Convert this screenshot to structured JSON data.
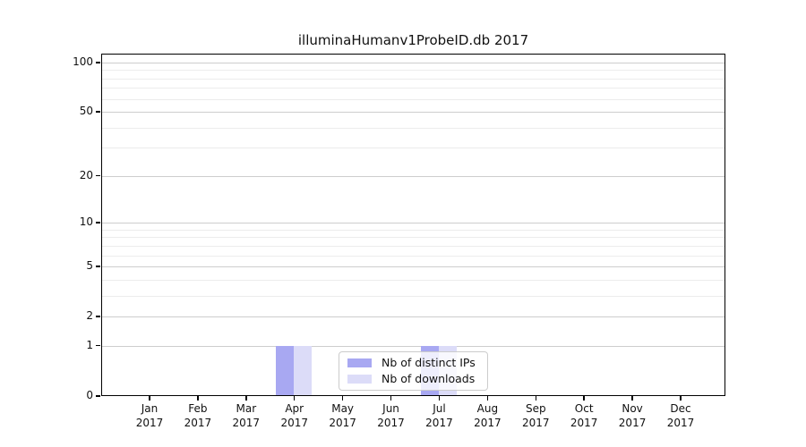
{
  "title": "illuminaHumanv1ProbeID.db 2017",
  "chart_data": {
    "type": "bar",
    "title": "illuminaHumanv1ProbeID.db 2017",
    "categories": [
      "Jan",
      "Feb",
      "Mar",
      "Apr",
      "May",
      "Jun",
      "Jul",
      "Aug",
      "Sep",
      "Oct",
      "Nov",
      "Dec"
    ],
    "category_year": "2017",
    "series": [
      {
        "name": "Nb of distinct IPs",
        "color": "#a8a8f2",
        "values": [
          0,
          0,
          0,
          1,
          0,
          0,
          1,
          0,
          0,
          0,
          0,
          0
        ]
      },
      {
        "name": "Nb of downloads",
        "color": "#dcdcf8",
        "values": [
          0,
          0,
          0,
          1,
          0,
          0,
          1,
          0,
          0,
          0,
          0,
          0
        ]
      }
    ],
    "xlabel": "",
    "ylabel": "",
    "yscale": "log1p",
    "ylim": [
      0,
      113
    ],
    "y_major_ticks": [
      0,
      1,
      2,
      5,
      10,
      20,
      50,
      100
    ],
    "y_minor_ticks": [
      3,
      4,
      6,
      7,
      8,
      9,
      30,
      40,
      60,
      70,
      80,
      90
    ],
    "grid": "horizontal",
    "legend_position": "inside lower-center"
  }
}
